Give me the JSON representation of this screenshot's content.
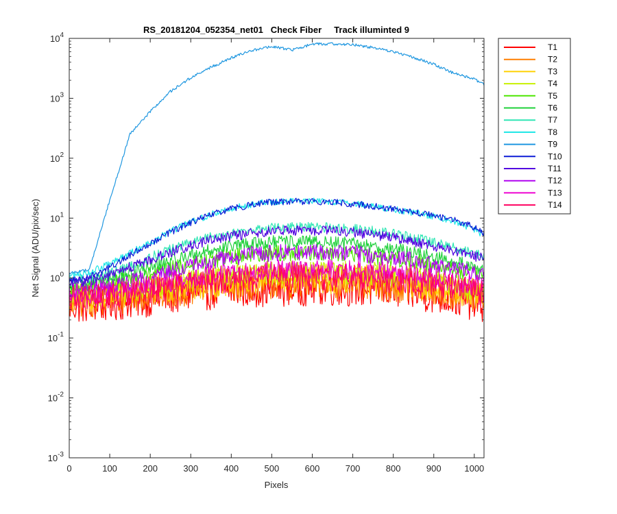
{
  "chart_data": {
    "type": "line",
    "title": "RS_20181204_052354_net01   Check Fiber     Track illuminted 9",
    "xlabel": "Pixels",
    "ylabel": "Net Signal (ADU/pix/sec)",
    "xlim": [
      0,
      1024
    ],
    "ylim": [
      0.001,
      10000
    ],
    "yscale": "log",
    "grid": false,
    "legend_position": "outside-right",
    "x_ticks": [
      "0",
      "100",
      "200",
      "300",
      "400",
      "500",
      "600",
      "700",
      "800",
      "900",
      "1000"
    ],
    "y_ticks": [
      {
        "base": "10",
        "exp": "-3",
        "value": 0.001
      },
      {
        "base": "10",
        "exp": "-2",
        "value": 0.01
      },
      {
        "base": "10",
        "exp": "-1",
        "value": 0.1
      },
      {
        "base": "10",
        "exp": "0",
        "value": 1
      },
      {
        "base": "10",
        "exp": "1",
        "value": 10
      },
      {
        "base": "10",
        "exp": "2",
        "value": 100
      },
      {
        "base": "10",
        "exp": "3",
        "value": 1000
      },
      {
        "base": "10",
        "exp": "4",
        "value": 10000
      }
    ],
    "x": [
      0,
      50,
      100,
      150,
      200,
      250,
      300,
      350,
      400,
      450,
      500,
      550,
      600,
      650,
      700,
      750,
      800,
      850,
      900,
      950,
      1000,
      1024
    ],
    "series": [
      {
        "name": "T1",
        "color": "#ff0000",
        "noise": 0.55,
        "values": [
          0.35,
          0.36,
          0.38,
          0.42,
          0.46,
          0.5,
          0.55,
          0.6,
          0.63,
          0.66,
          0.68,
          0.69,
          0.7,
          0.69,
          0.68,
          0.66,
          0.63,
          0.58,
          0.52,
          0.46,
          0.4,
          0.37
        ]
      },
      {
        "name": "T2",
        "color": "#ff7f00",
        "noise": 0.5,
        "values": [
          0.4,
          0.42,
          0.45,
          0.5,
          0.55,
          0.6,
          0.66,
          0.72,
          0.77,
          0.8,
          0.82,
          0.83,
          0.84,
          0.83,
          0.82,
          0.8,
          0.76,
          0.7,
          0.63,
          0.56,
          0.48,
          0.44
        ]
      },
      {
        "name": "T3",
        "color": "#ffd000",
        "noise": 0.45,
        "values": [
          0.45,
          0.47,
          0.5,
          0.56,
          0.62,
          0.69,
          0.76,
          0.83,
          0.89,
          0.93,
          0.95,
          0.96,
          0.97,
          0.96,
          0.95,
          0.93,
          0.88,
          0.81,
          0.73,
          0.65,
          0.56,
          0.52
        ]
      },
      {
        "name": "T4",
        "color": "#c8f000",
        "noise": 0.35,
        "values": [
          0.5,
          0.52,
          0.56,
          0.63,
          0.72,
          0.82,
          0.93,
          1.03,
          1.12,
          1.18,
          1.22,
          1.24,
          1.25,
          1.24,
          1.22,
          1.18,
          1.11,
          1.02,
          0.9,
          0.78,
          0.66,
          0.6
        ]
      },
      {
        "name": "T5",
        "color": "#4ce600",
        "noise": 0.25,
        "values": [
          0.65,
          0.7,
          0.8,
          0.95,
          1.15,
          1.4,
          1.7,
          2.0,
          2.3,
          2.5,
          2.6,
          2.65,
          2.65,
          2.6,
          2.5,
          2.35,
          2.15,
          1.9,
          1.65,
          1.4,
          1.15,
          1.05
        ]
      },
      {
        "name": "T6",
        "color": "#1fd03a",
        "noise": 0.2,
        "values": [
          0.75,
          0.8,
          0.95,
          1.2,
          1.5,
          1.9,
          2.4,
          2.9,
          3.4,
          3.75,
          3.95,
          4.0,
          4.0,
          3.9,
          3.7,
          3.4,
          3.05,
          2.65,
          2.25,
          1.9,
          1.55,
          1.4
        ]
      },
      {
        "name": "T7",
        "color": "#2ee6b4",
        "noise": 0.15,
        "values": [
          0.9,
          1.0,
          1.2,
          1.6,
          2.2,
          3.0,
          3.9,
          4.8,
          5.6,
          6.3,
          6.8,
          7.0,
          7.0,
          6.9,
          6.6,
          6.1,
          5.4,
          4.7,
          3.9,
          3.2,
          2.6,
          2.3
        ]
      },
      {
        "name": "T8",
        "color": "#1ae6e6",
        "noise": 0.1,
        "values": [
          1.1,
          1.25,
          1.7,
          2.6,
          4.0,
          6.0,
          8.6,
          11.5,
          14.5,
          17.0,
          18.8,
          19.5,
          19.5,
          19.0,
          17.8,
          16.0,
          14.0,
          12.3,
          10.8,
          9.0,
          6.5,
          5.2
        ]
      },
      {
        "name": "T9",
        "color": "#1f97e0",
        "noise": 0.04,
        "values": [
          1.2,
          1.4,
          20,
          250,
          600,
          1300,
          2200,
          3300,
          4700,
          6300,
          7300,
          6400,
          8000,
          8100,
          7900,
          7000,
          6000,
          4800,
          3700,
          2600,
          2100,
          1700
        ]
      },
      {
        "name": "T10",
        "color": "#0a1ad6",
        "noise": 0.1,
        "values": [
          0.9,
          1.05,
          1.5,
          2.4,
          3.8,
          5.8,
          8.4,
          11.3,
          14.3,
          16.8,
          18.5,
          19.0,
          19.0,
          18.5,
          17.4,
          15.8,
          14.0,
          12.5,
          11.0,
          9.3,
          7.0,
          5.6
        ]
      },
      {
        "name": "T11",
        "color": "#5200e0",
        "noise": 0.15,
        "values": [
          0.8,
          0.9,
          1.1,
          1.5,
          2.0,
          2.7,
          3.5,
          4.3,
          5.0,
          5.6,
          6.0,
          6.2,
          6.2,
          6.1,
          5.8,
          5.3,
          4.7,
          4.0,
          3.4,
          2.8,
          2.3,
          2.1
        ]
      },
      {
        "name": "T12",
        "color": "#b000f0",
        "noise": 0.25,
        "values": [
          0.6,
          0.65,
          0.72,
          0.85,
          1.05,
          1.3,
          1.6,
          1.9,
          2.2,
          2.45,
          2.6,
          2.7,
          2.7,
          2.65,
          2.55,
          2.4,
          2.2,
          1.95,
          1.7,
          1.45,
          1.2,
          1.1
        ]
      },
      {
        "name": "T13",
        "color": "#ee00d0",
        "noise": 0.3,
        "values": [
          0.5,
          0.53,
          0.58,
          0.65,
          0.75,
          0.87,
          1.0,
          1.12,
          1.23,
          1.32,
          1.38,
          1.4,
          1.42,
          1.4,
          1.37,
          1.32,
          1.24,
          1.13,
          1.0,
          0.88,
          0.76,
          0.7
        ]
      },
      {
        "name": "T14",
        "color": "#ff0060",
        "noise": 0.4,
        "values": [
          0.45,
          0.47,
          0.5,
          0.55,
          0.62,
          0.7,
          0.78,
          0.86,
          0.92,
          0.97,
          1.0,
          1.02,
          1.03,
          1.02,
          1.0,
          0.97,
          0.92,
          0.85,
          0.77,
          0.68,
          0.58,
          0.54
        ]
      }
    ]
  }
}
